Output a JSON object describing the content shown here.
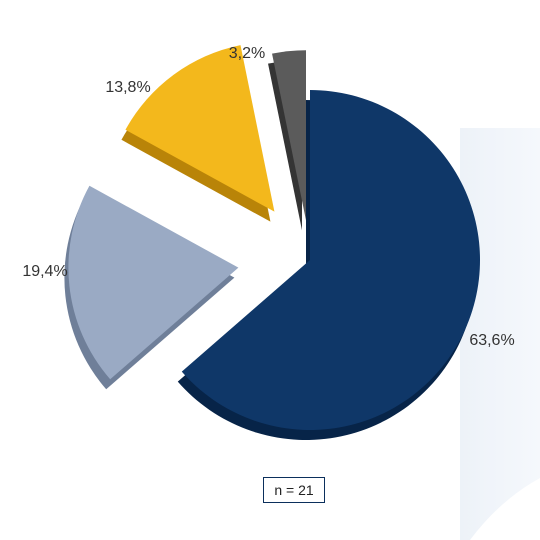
{
  "chart_data": {
    "type": "pie",
    "title": "",
    "slices": [
      {
        "label": "63,6%",
        "value": 63.6,
        "color": "#0f3768",
        "side": "#072448"
      },
      {
        "label": "19,4%",
        "value": 19.4,
        "color": "#9aaac4",
        "side": "#6f7f99"
      },
      {
        "label": "13,8%",
        "value": 13.8,
        "color": "#f3b81c",
        "side": "#b98408"
      },
      {
        "label": "3,2%",
        "value": 3.2,
        "color": "#5b5b5b",
        "side": "#343434"
      }
    ],
    "exploded": true,
    "style": "3d"
  },
  "footer": {
    "n_label": "n = 21"
  }
}
